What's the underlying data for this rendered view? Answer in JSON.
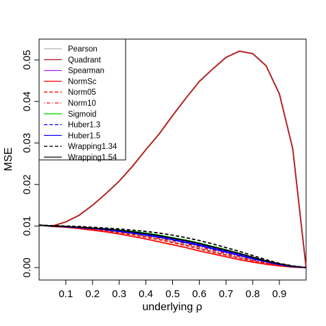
{
  "chart_data": {
    "type": "line",
    "title": "",
    "xlabel": "underlying ρ",
    "ylabel": "MSE",
    "xlim": [
      0,
      1
    ],
    "ylim": [
      -0.003,
      0.055
    ],
    "x_ticks": [
      0.1,
      0.2,
      0.3,
      0.4,
      0.5,
      0.6,
      0.7,
      0.8,
      0.9
    ],
    "x_tick_labels": [
      "0.1",
      "0.2",
      "0.3",
      "0.4",
      "0.5",
      "0.6",
      "0.7",
      "0.8",
      "0.9"
    ],
    "y_ticks": [
      0,
      0.01,
      0.02,
      0.03,
      0.04,
      0.05
    ],
    "y_tick_labels": [
      "0.00",
      "0.01",
      "0.02",
      "0.03",
      "0.04",
      "0.05"
    ],
    "grid": false,
    "legend_position": "top-left",
    "x": [
      0,
      0.05,
      0.1,
      0.15,
      0.2,
      0.25,
      0.3,
      0.35,
      0.4,
      0.45,
      0.5,
      0.55,
      0.6,
      0.65,
      0.7,
      0.75,
      0.8,
      0.85,
      0.9,
      0.95,
      1.0
    ],
    "series": [
      {
        "name": "Pearson",
        "color": "#b0b0b0",
        "dash": "solid",
        "values": [
          0.0102,
          0.01,
          0.0098,
          0.0096,
          0.0093,
          0.009,
          0.0086,
          0.0081,
          0.0075,
          0.0069,
          0.0062,
          0.0055,
          0.0047,
          0.0039,
          0.0031,
          0.0024,
          0.0017,
          0.001,
          0.0005,
          0.0002,
          0.0
        ]
      },
      {
        "name": "Quadrant",
        "color": "#b22222",
        "dash": "solid",
        "values": [
          0.0102,
          0.01,
          0.011,
          0.0126,
          0.015,
          0.0178,
          0.0208,
          0.0244,
          0.0284,
          0.0322,
          0.0366,
          0.0408,
          0.0448,
          0.0478,
          0.0506,
          0.0521,
          0.0515,
          0.0486,
          0.0418,
          0.0286,
          0.0
        ]
      },
      {
        "name": "Spearman",
        "color": "#a020f0",
        "dash": "solid",
        "values": [
          0.0102,
          0.01,
          0.0098,
          0.0096,
          0.0094,
          0.0091,
          0.0088,
          0.0084,
          0.0079,
          0.0074,
          0.0068,
          0.0062,
          0.0055,
          0.0047,
          0.0039,
          0.0031,
          0.0023,
          0.0015,
          0.0008,
          0.0003,
          0.0
        ]
      },
      {
        "name": "NormSc",
        "color": "#ff0000",
        "dash": "solid",
        "values": [
          0.0102,
          0.0099,
          0.0097,
          0.0094,
          0.009,
          0.0086,
          0.0081,
          0.0075,
          0.0069,
          0.0062,
          0.0055,
          0.0048,
          0.004,
          0.0033,
          0.0026,
          0.0019,
          0.0013,
          0.0008,
          0.0004,
          0.0001,
          0.0
        ]
      },
      {
        "name": "Norm05",
        "color": "#ff0000",
        "dash": "dashed",
        "values": [
          0.0102,
          0.01,
          0.0098,
          0.0095,
          0.0092,
          0.0088,
          0.0084,
          0.0079,
          0.0073,
          0.0067,
          0.006,
          0.0053,
          0.0045,
          0.0037,
          0.003,
          0.0023,
          0.0016,
          0.001,
          0.0005,
          0.0002,
          0.0
        ]
      },
      {
        "name": "Norm10",
        "color": "#ff0000",
        "dash": "dotdash",
        "values": [
          0.0102,
          0.01,
          0.0098,
          0.0096,
          0.0093,
          0.009,
          0.0086,
          0.0082,
          0.0077,
          0.0071,
          0.0065,
          0.0058,
          0.005,
          0.0042,
          0.0034,
          0.0027,
          0.0019,
          0.0012,
          0.0006,
          0.0002,
          0.0
        ]
      },
      {
        "name": "Sigmoid",
        "color": "#00dd00",
        "dash": "solid",
        "values": [
          0.0102,
          0.01,
          0.0099,
          0.0097,
          0.0095,
          0.0093,
          0.009,
          0.0087,
          0.0083,
          0.0078,
          0.0072,
          0.0066,
          0.0059,
          0.0051,
          0.0043,
          0.0034,
          0.0025,
          0.0016,
          0.0009,
          0.0003,
          0.0
        ]
      },
      {
        "name": "Huber1.3",
        "color": "#0000ff",
        "dash": "dashed",
        "values": [
          0.0102,
          0.01,
          0.0099,
          0.0097,
          0.0095,
          0.0092,
          0.0089,
          0.0085,
          0.008,
          0.0075,
          0.0069,
          0.0063,
          0.0056,
          0.0048,
          0.004,
          0.0032,
          0.0024,
          0.0016,
          0.0009,
          0.0003,
          0.0
        ]
      },
      {
        "name": "Huber1.5",
        "color": "#0000ff",
        "dash": "solid",
        "values": [
          0.0102,
          0.01,
          0.0098,
          0.0096,
          0.0094,
          0.0091,
          0.0087,
          0.0083,
          0.0078,
          0.0073,
          0.0067,
          0.006,
          0.0053,
          0.0045,
          0.0037,
          0.0029,
          0.0021,
          0.0014,
          0.0007,
          0.0002,
          0.0
        ]
      },
      {
        "name": "Wrapping1.34",
        "color": "#000000",
        "dash": "dashed",
        "values": [
          0.0102,
          0.0101,
          0.01,
          0.0099,
          0.0097,
          0.0095,
          0.0093,
          0.009,
          0.0087,
          0.0083,
          0.0078,
          0.0072,
          0.0065,
          0.0057,
          0.0048,
          0.0039,
          0.0029,
          0.0019,
          0.001,
          0.0004,
          0.0
        ]
      },
      {
        "name": "Wrapping1.54",
        "color": "#000000",
        "dash": "solid",
        "values": [
          0.0102,
          0.01,
          0.0099,
          0.0097,
          0.0095,
          0.0093,
          0.009,
          0.0086,
          0.0082,
          0.0077,
          0.0071,
          0.0065,
          0.0058,
          0.005,
          0.0042,
          0.0034,
          0.0025,
          0.0016,
          0.0009,
          0.0003,
          0.0
        ]
      }
    ]
  }
}
